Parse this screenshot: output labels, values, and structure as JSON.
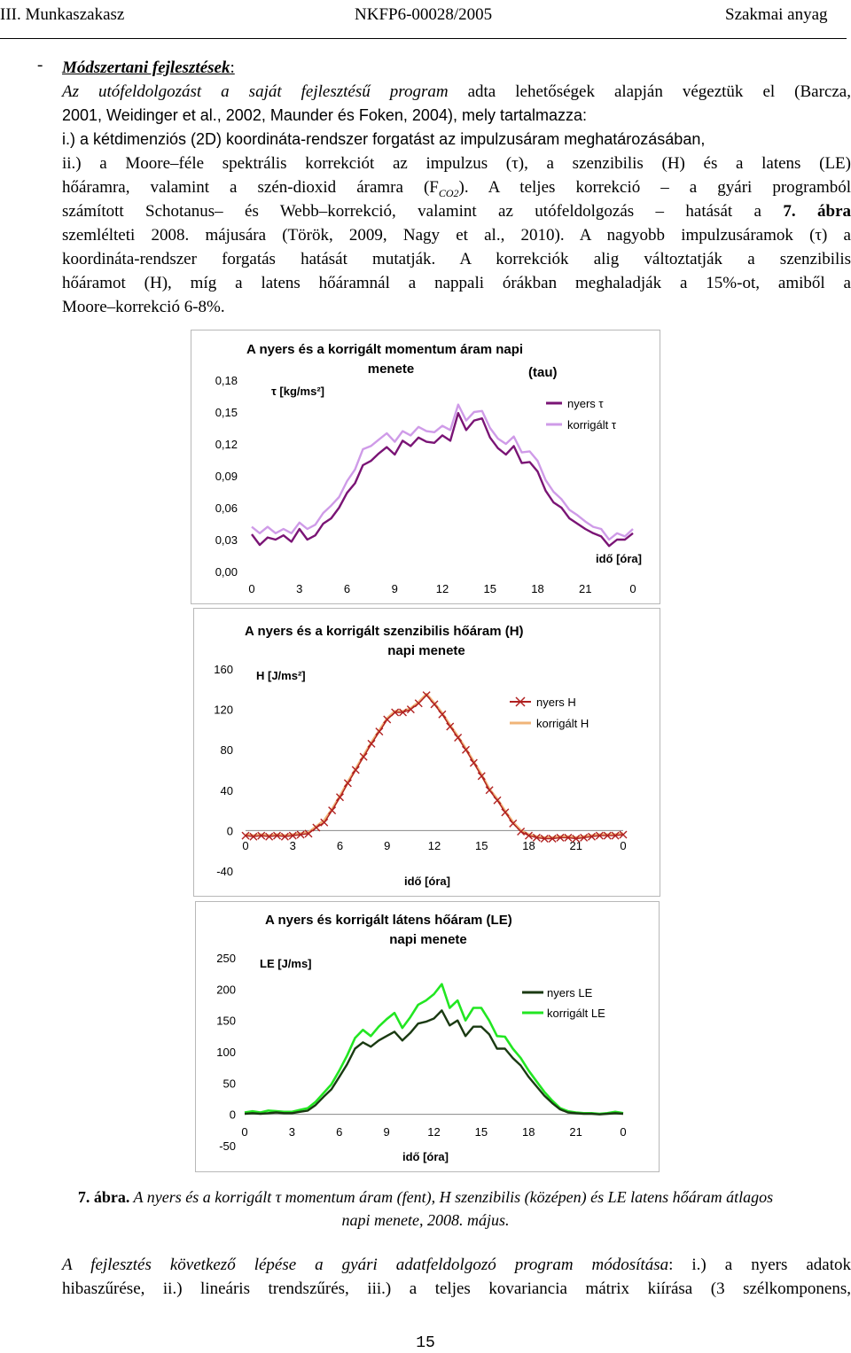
{
  "header": {
    "left": "III. Munkaszakasz",
    "center": "NKFP6-00028/2005",
    "right": "Szakmai anyag"
  },
  "section": {
    "bullet": "-",
    "heading": "Módszertani fejlesztések",
    "heading_colon": ":",
    "intro_italic": "Az utófeldolgozást a saját fejlesztésű program",
    "intro_rest1": " adta lehetőségek alapján végeztük el (Barcza,",
    "intro_line2": "2001, Weidinger et al., 2002, Maunder és Foken, 2004), mely tartalmazza:",
    "item_i": "i.) a kétdimenziós (2D) koordináta-rendszer forgatást az impulzusáram meghatározásában,",
    "p_ii_1": "ii.) a Moore–féle spektrális korrekciót az impulzus (τ), a szenzibilis (H) és a latens (LE)",
    "p_ii_2": "hőáramra, valamint a szén-dioxid áramra (F",
    "p_ii_2_sub": "CO2",
    "p_ii_2_rest": "). A teljes korrekció – a gyári programból",
    "p_ii_3": "számított Schotanus– és Webb–korrekció, valamint az utófeldolgozás – hatását a",
    "p_ii_3_bold": " 7.",
    "p_ii_3_bold2": "ábra",
    "p_ii_4": "szemlélteti 2008. májusára (Török, 2009, Nagy et al., 2010). A nagyobb impulzusáramok (τ) a",
    "p_ii_5": "koordináta-rendszer forgatás hatását mutatják. A korrekciók alig változtatják a szenzibilis",
    "p_ii_6": "hőáramot (H), míg a latens hőáramnál a nappali órákban meghaladják a 15%-ot, amiből a",
    "p_ii_7": "Moore–korrekció 6-8%."
  },
  "figure_caption": {
    "label": "7. ábra.",
    "text1": " A nyers és a korrigált τ momentum áram (fent), H szenzibilis (középen) és LE latens hőáram átlagos",
    "text2": "napi menete, 2008. május."
  },
  "closing": {
    "line1": "A fejlesztés következő lépése a gyári adatfeldolgozó program módosítása",
    "line1_rest": ": i.) a nyers adatok",
    "line2": "hibaszűrése, ii.) lineáris trendszűrés, iii.) a teljes kovariancia mátrix kiírása (3 szélkomponens,"
  },
  "page_number": "15",
  "colors": {
    "tau_raw": "#7a1475",
    "tau_corr": "#cf9be8",
    "h_raw": "#b02020",
    "h_corr": "#f0b478",
    "le_raw": "#1a3a12",
    "le_corr": "#22e622"
  },
  "chart_data": [
    {
      "type": "line",
      "title_line1": "A nyers és a korrigált momentum áram napi",
      "title_line2": "menete",
      "title_side": "(tau)",
      "ylabel": "τ [kg/ms²]",
      "xlabel": "idő [óra]",
      "ylim": [
        0,
        0.18
      ],
      "yticks": [
        "0,18",
        "0,15",
        "0,12",
        "0,09",
        "0,06",
        "0,03",
        "0,00"
      ],
      "xticks": [
        "0",
        "3",
        "6",
        "9",
        "12",
        "15",
        "18",
        "21",
        "0"
      ],
      "legend_position": "top-right",
      "series": [
        {
          "name": "nyers τ",
          "values": [
            0.035,
            0.025,
            0.032,
            0.03,
            0.034,
            0.028,
            0.04,
            0.03,
            0.034,
            0.045,
            0.05,
            0.06,
            0.074,
            0.083,
            0.1,
            0.104,
            0.111,
            0.117,
            0.11,
            0.123,
            0.118,
            0.126,
            0.122,
            0.121,
            0.128,
            0.123,
            0.149,
            0.133,
            0.142,
            0.144,
            0.126,
            0.116,
            0.11,
            0.118,
            0.102,
            0.103,
            0.094,
            0.076,
            0.065,
            0.06,
            0.05,
            0.045,
            0.04,
            0.036,
            0.033,
            0.024,
            0.03,
            0.03,
            0.036
          ]
        },
        {
          "name": "korrigált τ",
          "values": [
            0.042,
            0.036,
            0.042,
            0.036,
            0.04,
            0.036,
            0.046,
            0.04,
            0.044,
            0.055,
            0.062,
            0.07,
            0.085,
            0.096,
            0.115,
            0.118,
            0.124,
            0.13,
            0.122,
            0.132,
            0.128,
            0.136,
            0.132,
            0.131,
            0.137,
            0.133,
            0.157,
            0.142,
            0.15,
            0.151,
            0.135,
            0.125,
            0.12,
            0.127,
            0.112,
            0.113,
            0.104,
            0.086,
            0.075,
            0.068,
            0.058,
            0.053,
            0.047,
            0.042,
            0.04,
            0.03,
            0.036,
            0.033,
            0.04
          ]
        }
      ]
    },
    {
      "type": "line",
      "title_line1": "A nyers és a korrigált szenzibilis hőáram (H)",
      "title_line2": "napi menete",
      "ylabel": "H [J/ms²]",
      "xlabel": "idő [óra]",
      "ylim": [
        -40,
        160
      ],
      "yticks": [
        "160",
        "120",
        "80",
        "40",
        "0",
        "-40"
      ],
      "xticks": [
        "0",
        "3",
        "6",
        "9",
        "12",
        "15",
        "18",
        "21",
        "0"
      ],
      "legend_position": "top-right",
      "series": [
        {
          "name": "nyers H",
          "values": [
            -5,
            -6,
            -5,
            -6,
            -5,
            -6,
            -5,
            -4,
            -3,
            3,
            8,
            20,
            33,
            47,
            60,
            73,
            86,
            98,
            110,
            117,
            117,
            120,
            126,
            134,
            125,
            115,
            103,
            92,
            80,
            67,
            54,
            40,
            30,
            18,
            7,
            -1,
            -5,
            -7,
            -8,
            -8,
            -7,
            -7,
            -8,
            -7,
            -6,
            -5,
            -5,
            -5,
            -4
          ]
        },
        {
          "name": "korrigált H",
          "values": [
            -4,
            -5,
            -4,
            -5,
            -4,
            -5,
            -4,
            -3,
            -2,
            4,
            10,
            21,
            34,
            48,
            61,
            74,
            87,
            99,
            111,
            118,
            118,
            121,
            127,
            135,
            126,
            116,
            104,
            93,
            81,
            68,
            55,
            41,
            31,
            19,
            8,
            0,
            -4,
            -6,
            -7,
            -7,
            -6,
            -6,
            -7,
            -6,
            -5,
            -4,
            -4,
            -4,
            -3
          ]
        }
      ]
    },
    {
      "type": "line",
      "title_line1": "A nyers és korrigált látens hőáram (LE)",
      "title_line2": "napi menete",
      "ylabel": "LE [J/ms]",
      "xlabel": "idő [óra]",
      "ylim": [
        -50,
        250
      ],
      "yticks": [
        "250",
        "200",
        "150",
        "100",
        "50",
        "0",
        "-50"
      ],
      "xticks": [
        "0",
        "3",
        "6",
        "9",
        "12",
        "15",
        "18",
        "21",
        "0"
      ],
      "legend_position": "top-right",
      "series": [
        {
          "name": "nyers LE",
          "values": [
            1,
            2,
            1,
            2,
            3,
            2,
            2,
            4,
            6,
            15,
            28,
            40,
            60,
            80,
            105,
            115,
            108,
            118,
            125,
            132,
            118,
            130,
            145,
            148,
            153,
            166,
            142,
            150,
            125,
            140,
            140,
            128,
            105,
            105,
            90,
            78,
            60,
            45,
            30,
            18,
            8,
            3,
            2,
            1,
            1,
            0,
            1,
            2,
            1
          ]
        },
        {
          "name": "korrigált LE",
          "values": [
            3,
            5,
            3,
            6,
            5,
            4,
            4,
            7,
            10,
            20,
            34,
            48,
            70,
            94,
            122,
            135,
            125,
            140,
            152,
            162,
            138,
            155,
            175,
            182,
            192,
            208,
            170,
            182,
            150,
            170,
            170,
            150,
            125,
            124,
            105,
            90,
            70,
            53,
            36,
            22,
            10,
            5,
            3,
            2,
            2,
            1,
            2,
            4,
            2
          ]
        }
      ]
    }
  ]
}
